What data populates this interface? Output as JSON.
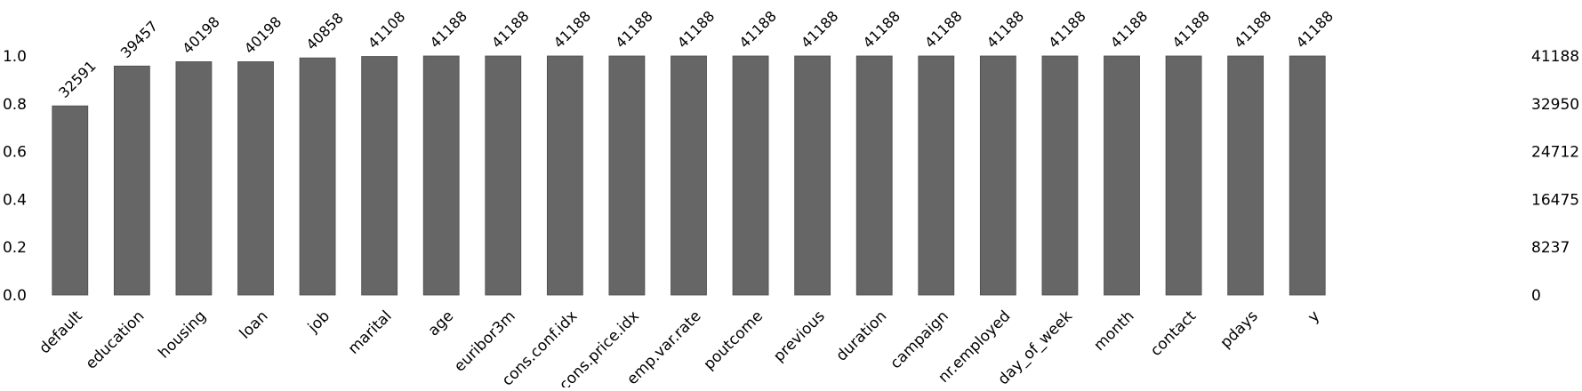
{
  "chart_data": {
    "type": "bar",
    "categories": [
      "default",
      "education",
      "housing",
      "loan",
      "job",
      "marital",
      "age",
      "euribor3m",
      "cons.conf.idx",
      "cons.price.idx",
      "emp.var.rate",
      "poutcome",
      "previous",
      "duration",
      "campaign",
      "nr.employed",
      "day_of_week",
      "month",
      "contact",
      "pdays",
      "y"
    ],
    "values": [
      32591,
      39457,
      40198,
      40198,
      40858,
      41108,
      41188,
      41188,
      41188,
      41188,
      41188,
      41188,
      41188,
      41188,
      41188,
      41188,
      41188,
      41188,
      41188,
      41188,
      41188
    ],
    "total": 41188,
    "left_ticks": [
      "0.0",
      "0.2",
      "0.4",
      "0.6",
      "0.8",
      "1.0"
    ],
    "right_ticks": [
      "0",
      "8237",
      "16475",
      "24712",
      "32950",
      "41188"
    ],
    "ylim": [
      0,
      1
    ],
    "bar_color": "#666666",
    "grid": false,
    "title": "",
    "xlabel": "",
    "ylabel": ""
  }
}
